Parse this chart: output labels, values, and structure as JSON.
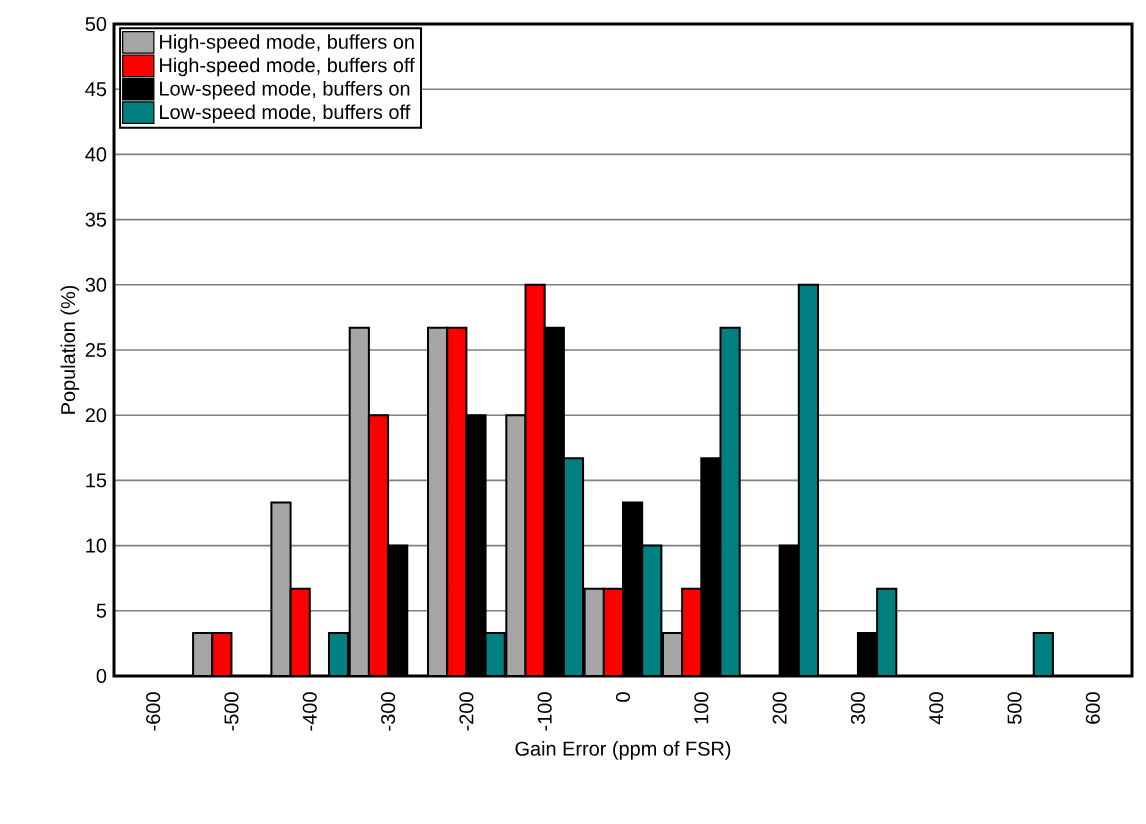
{
  "chart_data": {
    "type": "bar",
    "xlabel": "Gain Error (ppm of FSR)",
    "ylabel": "Population (%)",
    "categories": [
      "-600",
      "-500",
      "-400",
      "-300",
      "-200",
      "-100",
      "0",
      "100",
      "200",
      "300",
      "400",
      "500",
      "600"
    ],
    "series": [
      {
        "name": "High-speed mode, buffers on",
        "color": "#a6a6a6",
        "values": [
          0,
          3.3,
          13.3,
          26.7,
          26.7,
          20,
          6.7,
          3.3,
          0,
          0,
          0,
          0,
          0
        ]
      },
      {
        "name": "High-speed mode, buffers off",
        "color": "#ff0000",
        "values": [
          0,
          3.3,
          6.7,
          20,
          26.7,
          30,
          6.7,
          6.7,
          0,
          0,
          0,
          0,
          0
        ]
      },
      {
        "name": "Low-speed mode, buffers on",
        "color": "#000000",
        "values": [
          0,
          0,
          0,
          10,
          20,
          26.7,
          13.3,
          16.7,
          10,
          3.3,
          0,
          0,
          0
        ]
      },
      {
        "name": "Low-speed mode, buffers off",
        "color": "#008080",
        "values": [
          0,
          0,
          3.3,
          0,
          3.3,
          16.7,
          10,
          26.7,
          30,
          6.7,
          0,
          3.3,
          0
        ]
      }
    ],
    "ylim": [
      0,
      50
    ],
    "yticks": [
      0,
      5,
      10,
      15,
      20,
      25,
      30,
      35,
      40,
      45,
      50
    ],
    "grid": "y",
    "legend": "top left"
  }
}
